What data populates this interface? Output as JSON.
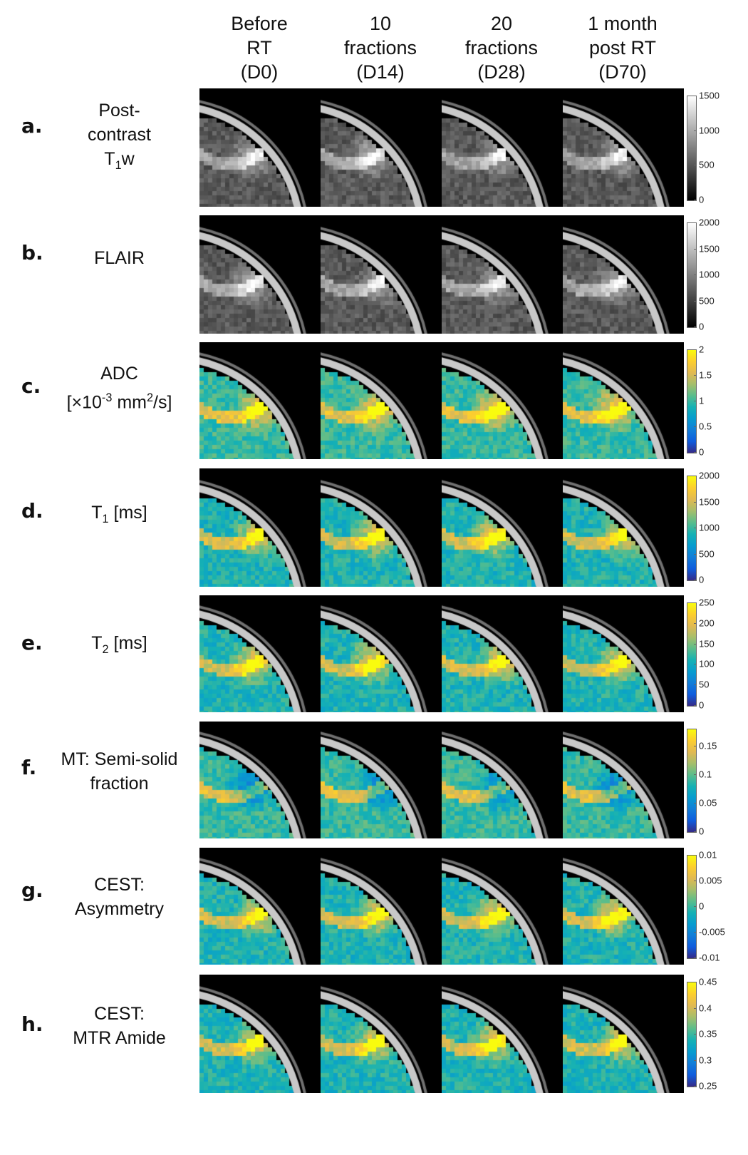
{
  "columns": [
    {
      "lines": [
        "Before",
        "RT",
        "(D0)"
      ]
    },
    {
      "lines": [
        "10",
        "fractions",
        "(D14)"
      ]
    },
    {
      "lines": [
        "20",
        "fractions",
        "(D28)"
      ]
    },
    {
      "lines": [
        "1 month",
        "post RT",
        "(D70)"
      ]
    }
  ],
  "rows": [
    {
      "letter": "a.",
      "label_html": [
        "Post-",
        "contrast",
        "T<sub>1</sub>w"
      ],
      "colormap": "gray",
      "ticks": [
        "1500",
        "1000",
        "500",
        "0"
      ],
      "tick_values": [
        1500,
        1000,
        500,
        0
      ],
      "range": [
        0,
        1500
      ]
    },
    {
      "letter": "b.",
      "label_html": [
        "FLAIR"
      ],
      "colormap": "gray",
      "ticks": [
        "2000",
        "1500",
        "1000",
        "500",
        "0"
      ],
      "tick_values": [
        2000,
        1500,
        1000,
        500,
        0
      ],
      "range": [
        0,
        2000
      ]
    },
    {
      "letter": "c.",
      "label_html": [
        "ADC",
        "[×10<sup>-3</sup> mm<sup>2</sup>/s]"
      ],
      "colormap": "parula",
      "ticks": [
        "2",
        "1.5",
        "1",
        "0.5",
        "0"
      ],
      "tick_values": [
        2,
        1.5,
        1,
        0.5,
        0
      ],
      "range": [
        0,
        2
      ]
    },
    {
      "letter": "d.",
      "label_html": [
        "T<sub>1</sub> [ms]"
      ],
      "colormap": "parula",
      "ticks": [
        "2000",
        "1500",
        "1000",
        "500",
        "0"
      ],
      "tick_values": [
        2000,
        1500,
        1000,
        500,
        0
      ],
      "range": [
        0,
        2000
      ]
    },
    {
      "letter": "e.",
      "label_html": [
        "T<sub>2</sub> [ms]"
      ],
      "colormap": "parula",
      "ticks": [
        "250",
        "200",
        "150",
        "100",
        "50",
        "0"
      ],
      "tick_values": [
        250,
        200,
        150,
        100,
        50,
        0
      ],
      "range": [
        0,
        250
      ]
    },
    {
      "letter": "f.",
      "label_html": [
        "MT: Semi-solid",
        "fraction"
      ],
      "colormap": "parula",
      "ticks": [
        "0.15",
        "0.1",
        "0.05",
        "0"
      ],
      "tick_values": [
        0.15,
        0.1,
        0.05,
        0
      ],
      "range": [
        0,
        0.18
      ]
    },
    {
      "letter": "g.",
      "label_html": [
        "CEST:",
        "Asymmetry"
      ],
      "colormap": "parula",
      "ticks": [
        "0.01",
        "0.005",
        "0",
        "-0.005",
        "-0.01"
      ],
      "tick_values": [
        0.01,
        0.005,
        0,
        -0.005,
        -0.01
      ],
      "range": [
        -0.01,
        0.01
      ]
    },
    {
      "letter": "h.",
      "label_html": [
        "CEST:",
        "MTR Amide"
      ],
      "colormap": "parula",
      "ticks": [
        "0.45",
        "0.4",
        "0.35",
        "0.3",
        "0.25"
      ],
      "tick_values": [
        0.45,
        0.4,
        0.35,
        0.3,
        0.25
      ],
      "range": [
        0.25,
        0.45
      ]
    }
  ],
  "colors": {
    "parula_low": "#352a87",
    "parula_mid": "#21b1c8",
    "parula_high": "#f9fb0e",
    "gray_low": "#000000",
    "gray_high": "#ffffff",
    "background": "#000000"
  },
  "icons": [
    "mri-slice-image"
  ]
}
